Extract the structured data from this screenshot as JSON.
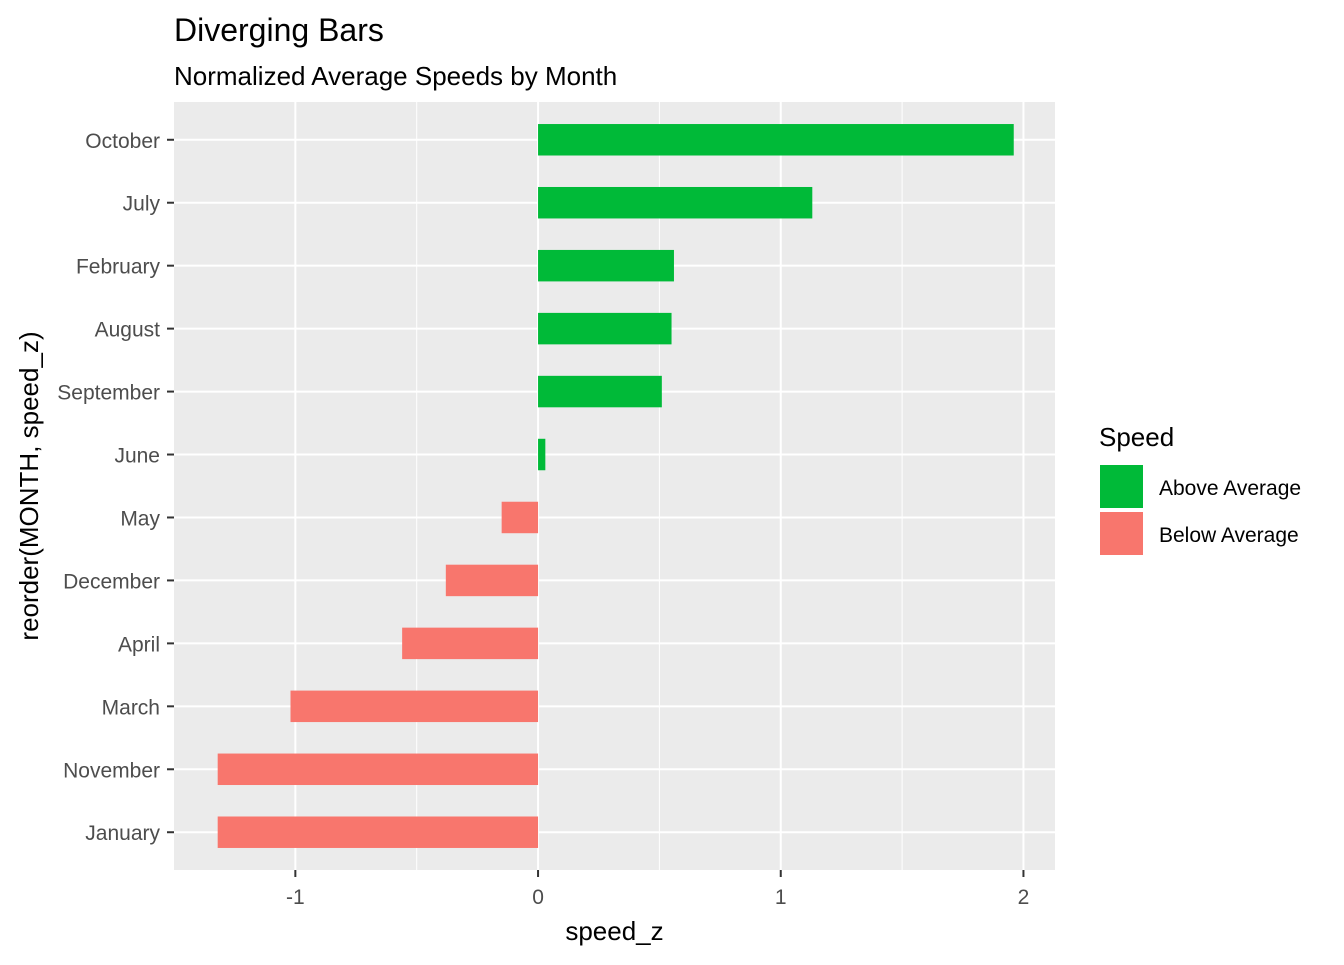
{
  "chart_data": {
    "type": "bar",
    "orientation": "horizontal",
    "title": "Diverging Bars",
    "subtitle": "Normalized Average Speeds by Month",
    "xlabel": "speed_z",
    "ylabel": "reorder(MONTH, speed_z)",
    "xlim": [
      -1.5,
      2.13
    ],
    "x_ticks": [
      -1,
      0,
      1,
      2
    ],
    "x_tick_labels": [
      "-1",
      "0",
      "1",
      "2"
    ],
    "grid": true,
    "legend": {
      "title": "Speed",
      "placement": "right",
      "entries": [
        {
          "label": "Above Average",
          "color": "#00BA38"
        },
        {
          "label": "Below Average",
          "color": "#F8766D"
        }
      ]
    },
    "categories": [
      "January",
      "November",
      "March",
      "April",
      "December",
      "May",
      "June",
      "September",
      "August",
      "February",
      "July",
      "October"
    ],
    "values": [
      -1.32,
      -1.32,
      -1.02,
      -0.56,
      -0.38,
      -0.15,
      0.03,
      0.51,
      0.55,
      0.56,
      1.13,
      1.96
    ],
    "groups": [
      "Below Average",
      "Below Average",
      "Below Average",
      "Below Average",
      "Below Average",
      "Below Average",
      "Above Average",
      "Above Average",
      "Above Average",
      "Above Average",
      "Above Average",
      "Above Average"
    ],
    "colors": {
      "Above Average": "#00BA38",
      "Below Average": "#F8766D",
      "panel_background": "#EBEBEB",
      "grid_major": "#FFFFFF"
    }
  }
}
